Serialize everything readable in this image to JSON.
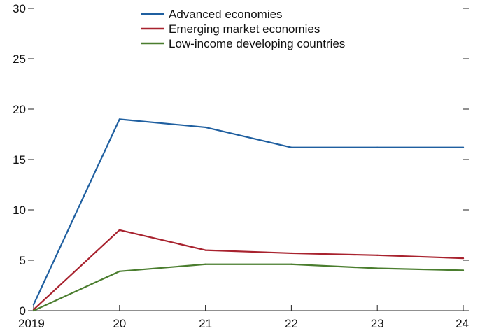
{
  "chart_data": {
    "type": "line",
    "categories": [
      "2019",
      "20",
      "21",
      "22",
      "23",
      "24"
    ],
    "x": [
      2019,
      2020,
      2021,
      2022,
      2023,
      2024
    ],
    "ylim": [
      0,
      30
    ],
    "yticks": [
      0,
      5,
      10,
      15,
      20,
      25,
      30
    ],
    "grid": false,
    "legend_position": "top-center",
    "series": [
      {
        "name": "Advanced economies",
        "color": "#1f5fa0",
        "values": [
          0.6,
          19.0,
          18.2,
          16.2,
          16.2,
          16.2
        ]
      },
      {
        "name": "Emerging market economies",
        "color": "#a8222e",
        "values": [
          0.1,
          8.0,
          6.0,
          5.7,
          5.5,
          5.2
        ]
      },
      {
        "name": "Low-income developing countries",
        "color": "#4a7d2e",
        "values": [
          0.0,
          3.9,
          4.6,
          4.6,
          4.2,
          4.0
        ]
      }
    ]
  }
}
